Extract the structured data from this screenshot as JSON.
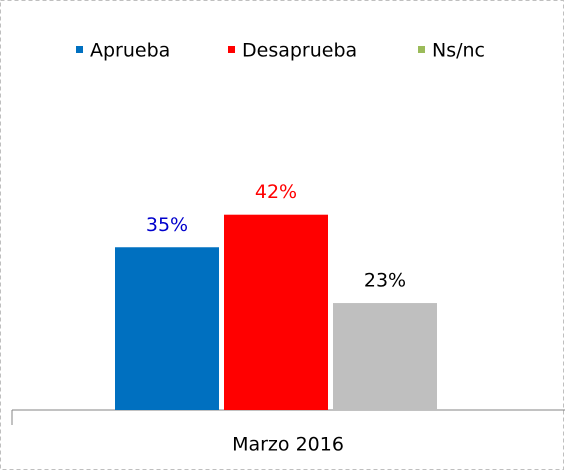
{
  "chart_data": {
    "type": "bar",
    "categories": [
      "Marzo 2016"
    ],
    "series": [
      {
        "name": "Aprueba",
        "color": "#0070c0",
        "legend_color": "#0070c0",
        "label_color": "#0000cc",
        "values": [
          35
        ],
        "value_labels": [
          "35%"
        ]
      },
      {
        "name": "Desaprueba",
        "color": "#ff0000",
        "legend_color": "#ff0000",
        "label_color": "#ff0000",
        "values": [
          42
        ],
        "value_labels": [
          "42%"
        ]
      },
      {
        "name": "Ns/nc",
        "color": "#bfbfbf",
        "legend_color": "#9bbb59",
        "label_color": "#000000",
        "values": [
          23
        ],
        "value_labels": [
          "23%"
        ]
      }
    ],
    "legend": "top"
  }
}
